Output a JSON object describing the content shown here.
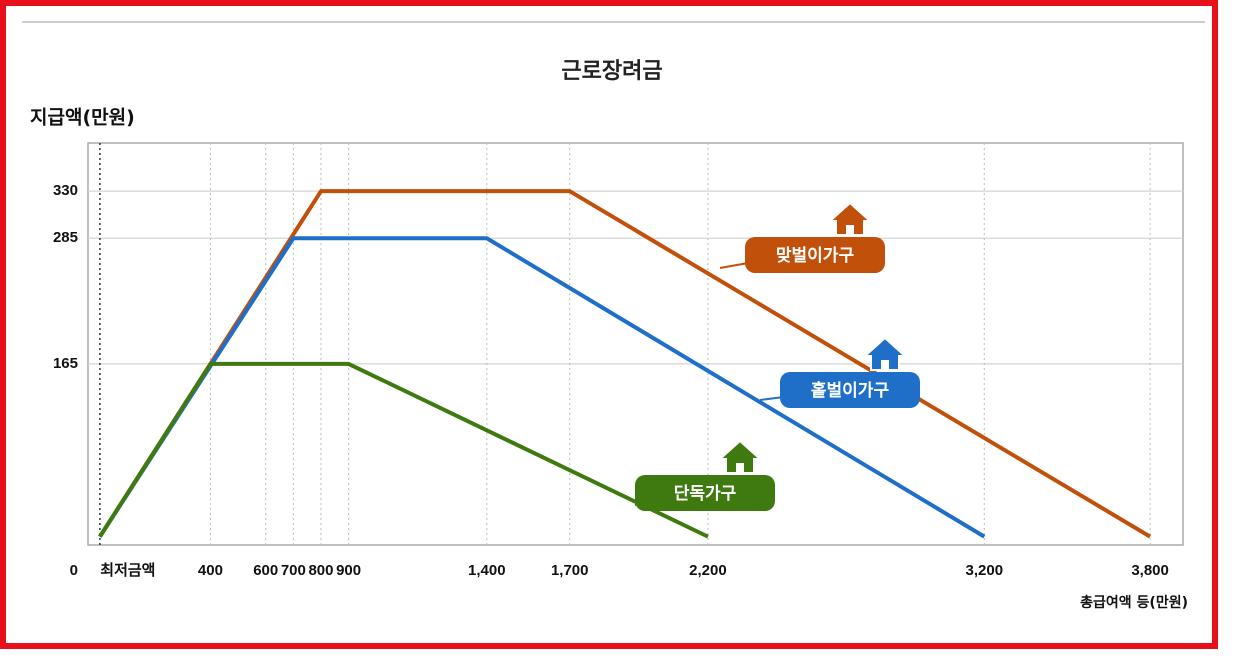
{
  "chart_data": {
    "type": "line",
    "title": "근로장려금",
    "y_label": "지급액(만원)",
    "x_label": "총급여액 등(만원)",
    "xlim": [
      -43,
      3919
    ],
    "ylim": [
      -8,
      376
    ],
    "xticks": [
      {
        "value": 0,
        "label": "최저금액"
      },
      400,
      600,
      700,
      800,
      900,
      {
        "value": 1400,
        "label": "1,400"
      },
      {
        "value": 1700,
        "label": "1,700"
      },
      {
        "value": 2200,
        "label": "2,200"
      },
      {
        "value": 3200,
        "label": "3,200"
      },
      {
        "value": 3800,
        "label": "3,800"
      }
    ],
    "yticks": [
      0,
      165,
      285,
      330
    ],
    "grid": true,
    "series": [
      {
        "name": "맞벌이가구",
        "color": "#c0500a",
        "x": [
          0,
          800,
          1700,
          3800
        ],
        "values": [
          0,
          330,
          330,
          0
        ]
      },
      {
        "name": "홑벌이가구",
        "color": "#1f6fc8",
        "x": [
          0,
          700,
          1400,
          3200
        ],
        "values": [
          0,
          285,
          285,
          0
        ]
      },
      {
        "name": "단독가구",
        "color": "#3f7a10",
        "x": [
          0,
          400,
          900,
          2200
        ],
        "values": [
          0,
          165,
          165,
          0
        ]
      }
    ]
  }
}
